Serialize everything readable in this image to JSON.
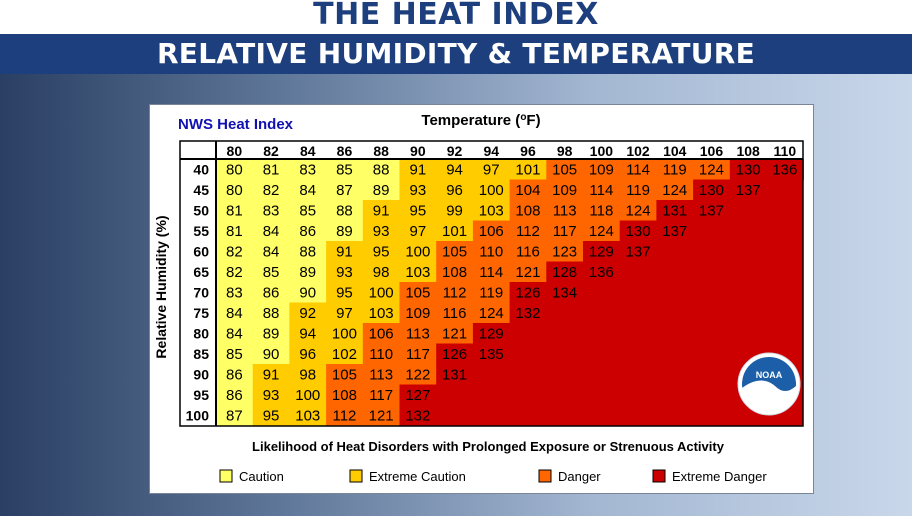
{
  "header": {
    "title": "THE HEAT INDEX",
    "subtitle": "RELATIVE HUMIDITY & TEMPERATURE"
  },
  "chart_data": {
    "type": "heatmap",
    "title": "NWS Heat Index",
    "xlabel": "Temperature (°F)",
    "ylabel": "Relative Humidity (%)",
    "x": [
      80,
      82,
      84,
      86,
      88,
      90,
      92,
      94,
      96,
      98,
      100,
      102,
      104,
      106,
      108,
      110
    ],
    "y": [
      40,
      45,
      50,
      55,
      60,
      65,
      70,
      75,
      80,
      85,
      90,
      95,
      100
    ],
    "values": [
      [
        80,
        81,
        83,
        85,
        88,
        91,
        94,
        97,
        101,
        105,
        109,
        114,
        119,
        124,
        130,
        136
      ],
      [
        80,
        82,
        84,
        87,
        89,
        93,
        96,
        100,
        104,
        109,
        114,
        119,
        124,
        130,
        137,
        null
      ],
      [
        81,
        83,
        85,
        88,
        91,
        95,
        99,
        103,
        108,
        113,
        118,
        124,
        131,
        137,
        null,
        null
      ],
      [
        81,
        84,
        86,
        89,
        93,
        97,
        101,
        106,
        112,
        117,
        124,
        130,
        137,
        null,
        null,
        null
      ],
      [
        82,
        84,
        88,
        91,
        95,
        100,
        105,
        110,
        116,
        123,
        129,
        137,
        null,
        null,
        null,
        null
      ],
      [
        82,
        85,
        89,
        93,
        98,
        103,
        108,
        114,
        121,
        128,
        136,
        null,
        null,
        null,
        null,
        null
      ],
      [
        83,
        86,
        90,
        95,
        100,
        105,
        112,
        119,
        126,
        134,
        null,
        null,
        null,
        null,
        null,
        null
      ],
      [
        84,
        88,
        92,
        97,
        103,
        109,
        116,
        124,
        132,
        null,
        null,
        null,
        null,
        null,
        null,
        null
      ],
      [
        84,
        89,
        94,
        100,
        106,
        113,
        121,
        129,
        null,
        null,
        null,
        null,
        null,
        null,
        null,
        null
      ],
      [
        85,
        90,
        96,
        102,
        110,
        117,
        126,
        135,
        null,
        null,
        null,
        null,
        null,
        null,
        null,
        null
      ],
      [
        86,
        91,
        98,
        105,
        113,
        122,
        131,
        null,
        null,
        null,
        null,
        null,
        null,
        null,
        null,
        null
      ],
      [
        86,
        93,
        100,
        108,
        117,
        127,
        null,
        null,
        null,
        null,
        null,
        null,
        null,
        null,
        null,
        null
      ],
      [
        87,
        95,
        103,
        112,
        121,
        132,
        null,
        null,
        null,
        null,
        null,
        null,
        null,
        null,
        null,
        null
      ]
    ],
    "categories": [
      {
        "label": "Caution",
        "color": "#ffff66"
      },
      {
        "label": "Extreme Caution",
        "color": "#ffcc00"
      },
      {
        "label": "Danger",
        "color": "#ff6600"
      },
      {
        "label": "Extreme Danger",
        "color": "#cc0000"
      }
    ],
    "legend_title": "Likelihood of Heat Disorders with Prolonged Exposure or Strenuous Activity",
    "legend_position": "bottom",
    "grid": false
  },
  "logo": {
    "text": "NOAA",
    "icon": "noaa-logo-icon"
  }
}
